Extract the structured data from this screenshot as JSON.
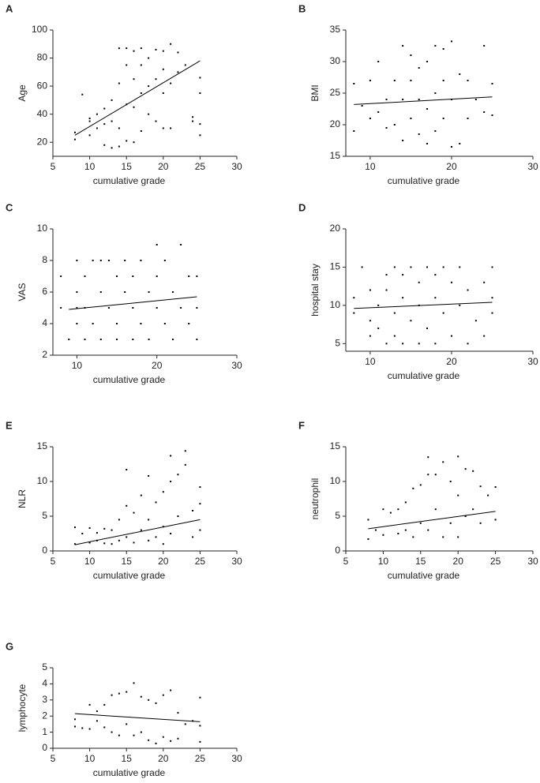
{
  "chart_data": [
    {
      "type": "scatter",
      "panel": "A",
      "ylabel": "Age",
      "xlabel": "cumulative grade",
      "color": "#000000",
      "xlim": [
        5,
        30
      ],
      "xticks": [
        5,
        10,
        15,
        20,
        25,
        30
      ],
      "ylim": [
        10,
        100
      ],
      "yticks": [
        20,
        40,
        60,
        80,
        100
      ],
      "x": [
        8,
        8,
        9,
        10,
        10,
        10,
        11,
        11,
        12,
        12,
        12,
        13,
        13,
        13,
        14,
        14,
        14,
        14,
        15,
        15,
        15,
        15,
        16,
        16,
        16,
        16,
        17,
        17,
        17,
        17,
        18,
        18,
        18,
        19,
        19,
        19,
        20,
        20,
        20,
        20,
        21,
        21,
        21,
        22,
        22,
        23,
        24,
        24,
        25,
        25,
        25,
        25
      ],
      "y": [
        22,
        27,
        54,
        25,
        35,
        37,
        30,
        40,
        18,
        33,
        44,
        16,
        50,
        35,
        17,
        62,
        87,
        30,
        21,
        47,
        75,
        87,
        20,
        45,
        65,
        85,
        28,
        55,
        75,
        87,
        40,
        60,
        80,
        35,
        65,
        86,
        30,
        55,
        72,
        85,
        30,
        62,
        90,
        70,
        84,
        75,
        38,
        35,
        25,
        33,
        55,
        66
      ],
      "fit": {
        "x": [
          8,
          25
        ],
        "y": [
          25,
          78
        ]
      }
    },
    {
      "type": "scatter",
      "panel": "B",
      "ylabel": "BMI",
      "xlabel": "cumulative grade",
      "color": "#000000",
      "xlim": [
        7,
        30
      ],
      "xticks": [
        10,
        20,
        30
      ],
      "ylim": [
        15,
        35
      ],
      "yticks": [
        15,
        20,
        25,
        30,
        35
      ],
      "x": [
        8,
        8,
        9,
        10,
        10,
        11,
        11,
        12,
        12,
        13,
        13,
        14,
        14,
        14,
        15,
        15,
        15,
        16,
        16,
        16,
        17,
        17,
        17,
        18,
        18,
        18,
        19,
        19,
        19,
        20,
        20,
        20,
        21,
        21,
        22,
        22,
        23,
        24,
        24,
        25,
        25
      ],
      "y": [
        26.5,
        19,
        23,
        27,
        21,
        30,
        22,
        19.5,
        24,
        27,
        20,
        32.5,
        17.5,
        24,
        31,
        21,
        27,
        18.5,
        24,
        29,
        30,
        17,
        22.5,
        32.5,
        19,
        25,
        32,
        21,
        27,
        33.2,
        16.5,
        24,
        28,
        17,
        27,
        21,
        24,
        32.5,
        22,
        26.5,
        21.5
      ],
      "fit": {
        "x": [
          8,
          25
        ],
        "y": [
          23.2,
          24.4
        ]
      }
    },
    {
      "type": "scatter",
      "panel": "C",
      "ylabel": "VAS",
      "xlabel": "cumulative grade",
      "color": "#000000",
      "xlim": [
        7,
        30
      ],
      "xticks": [
        10,
        20,
        30
      ],
      "ylim": [
        2,
        10
      ],
      "yticks": [
        2,
        4,
        6,
        8,
        10
      ],
      "x": [
        8,
        8,
        9,
        10,
        10,
        10,
        10,
        11,
        11,
        11,
        12,
        12,
        13,
        13,
        13,
        14,
        14,
        15,
        15,
        15,
        16,
        16,
        17,
        17,
        17,
        18,
        18,
        19,
        19,
        20,
        20,
        20,
        21,
        21,
        22,
        22,
        23,
        23,
        24,
        24,
        25,
        25,
        25
      ],
      "y": [
        7,
        5,
        3,
        8,
        6,
        5,
        4,
        3,
        7,
        5,
        8,
        4,
        8,
        6,
        3,
        8,
        5,
        7,
        4,
        3,
        8,
        6,
        7,
        5,
        3,
        8,
        4,
        6,
        3,
        9,
        7,
        5,
        8,
        4,
        6,
        3,
        9,
        5,
        7,
        4,
        7,
        5,
        3
      ],
      "fit": {
        "x": [
          9,
          25
        ],
        "y": [
          4.9,
          5.7
        ]
      }
    },
    {
      "type": "scatter",
      "panel": "D",
      "ylabel": "hospital stay",
      "xlabel": "cumulative grade",
      "color": "#000000",
      "xlim": [
        7,
        30
      ],
      "xticks": [
        10,
        20,
        30
      ],
      "ylim": [
        4,
        20
      ],
      "yticks": [
        5,
        10,
        15,
        20
      ],
      "x": [
        8,
        8,
        9,
        10,
        10,
        10,
        11,
        11,
        12,
        12,
        12,
        13,
        13,
        13,
        14,
        14,
        14,
        15,
        15,
        16,
        16,
        16,
        17,
        17,
        18,
        18,
        18,
        19,
        19,
        20,
        20,
        21,
        21,
        22,
        22,
        23,
        24,
        24,
        25,
        25,
        25
      ],
      "y": [
        11,
        9,
        15,
        12,
        8,
        6,
        10,
        7,
        14,
        12,
        5,
        15,
        9,
        6,
        14,
        11,
        5,
        15,
        8,
        13,
        10,
        5,
        15,
        7,
        14,
        11,
        5,
        15,
        9,
        13,
        6,
        15,
        10,
        12,
        5,
        8,
        13,
        6,
        15,
        9,
        11
      ],
      "fit": {
        "x": [
          8,
          25
        ],
        "y": [
          9.6,
          10.4
        ]
      }
    },
    {
      "type": "scatter",
      "panel": "E",
      "ylabel": "NLR",
      "xlabel": "cumulative grade",
      "color": "#000000",
      "xlim": [
        5,
        30
      ],
      "xticks": [
        5,
        10,
        15,
        20,
        25,
        30
      ],
      "ylim": [
        0,
        15
      ],
      "yticks": [
        0,
        5,
        10,
        15
      ],
      "x": [
        8,
        8,
        9,
        10,
        10,
        11,
        11,
        12,
        12,
        13,
        13,
        14,
        14,
        15,
        15,
        15,
        16,
        16,
        17,
        17,
        18,
        18,
        18,
        19,
        19,
        20,
        20,
        20,
        21,
        21,
        21,
        22,
        22,
        23,
        23,
        24,
        24,
        25,
        25,
        25
      ],
      "y": [
        3.4,
        1,
        2.5,
        1.2,
        3.3,
        2.6,
        1.5,
        3.2,
        1.1,
        3,
        1,
        4.5,
        1.5,
        6.5,
        11.7,
        2,
        5.5,
        1.2,
        8,
        3,
        10.8,
        4.5,
        1.5,
        7,
        2,
        8.5,
        3.5,
        1,
        13.7,
        10,
        2.5,
        11,
        5,
        12.4,
        14.4,
        5.8,
        2,
        9.2,
        6.8,
        3
      ],
      "fit": {
        "x": [
          8,
          25
        ],
        "y": [
          0.9,
          4.5
        ]
      }
    },
    {
      "type": "scatter",
      "panel": "F",
      "ylabel": "neutrophil",
      "xlabel": "cumulative grade",
      "color": "#000000",
      "xlim": [
        5,
        30
      ],
      "xticks": [
        5,
        10,
        15,
        20,
        25,
        30
      ],
      "ylim": [
        0,
        15
      ],
      "yticks": [
        0,
        5,
        10,
        15
      ],
      "x": [
        8,
        8,
        9,
        10,
        10,
        11,
        12,
        12,
        13,
        13,
        14,
        14,
        15,
        15,
        16,
        16,
        16,
        17,
        17,
        18,
        18,
        19,
        19,
        20,
        20,
        20,
        21,
        21,
        22,
        22,
        23,
        23,
        24,
        25,
        25
      ],
      "y": [
        4.5,
        1.7,
        3,
        6,
        2.3,
        5.5,
        6,
        2.5,
        7,
        3,
        9,
        2,
        9.5,
        4,
        13.5,
        11,
        3,
        11,
        6,
        12.8,
        2,
        10,
        4,
        13.6,
        8,
        2,
        11.8,
        5,
        11.5,
        6,
        9.3,
        4,
        8,
        9.2,
        4.5
      ],
      "fit": {
        "x": [
          8,
          25
        ],
        "y": [
          3.2,
          5.7
        ]
      }
    },
    {
      "type": "scatter",
      "panel": "G",
      "ylabel": "lymphocyte",
      "xlabel": "cumulative grade",
      "color": "#000000",
      "xlim": [
        5,
        30
      ],
      "xticks": [
        5,
        10,
        15,
        20,
        25,
        30
      ],
      "ylim": [
        0,
        5
      ],
      "yticks": [
        0,
        1,
        2,
        3,
        4,
        5
      ],
      "x": [
        8,
        8,
        9,
        10,
        10,
        11,
        11,
        12,
        12,
        13,
        13,
        14,
        14,
        15,
        15,
        16,
        16,
        17,
        17,
        18,
        18,
        19,
        19,
        20,
        20,
        21,
        21,
        22,
        22,
        23,
        24,
        25,
        25,
        25
      ],
      "y": [
        1.8,
        1.35,
        1.25,
        2.7,
        1.2,
        2.3,
        1.7,
        2.7,
        1.3,
        3.3,
        1,
        3.4,
        0.8,
        3.5,
        1.5,
        4.05,
        0.8,
        3.2,
        1,
        3,
        0.5,
        2.8,
        0.3,
        3.3,
        0.7,
        3.6,
        0.45,
        2.2,
        0.6,
        1.5,
        1.7,
        3.15,
        1.4,
        0.4
      ],
      "fit": {
        "x": [
          8,
          25
        ],
        "y": [
          2.15,
          1.65
        ]
      }
    }
  ]
}
